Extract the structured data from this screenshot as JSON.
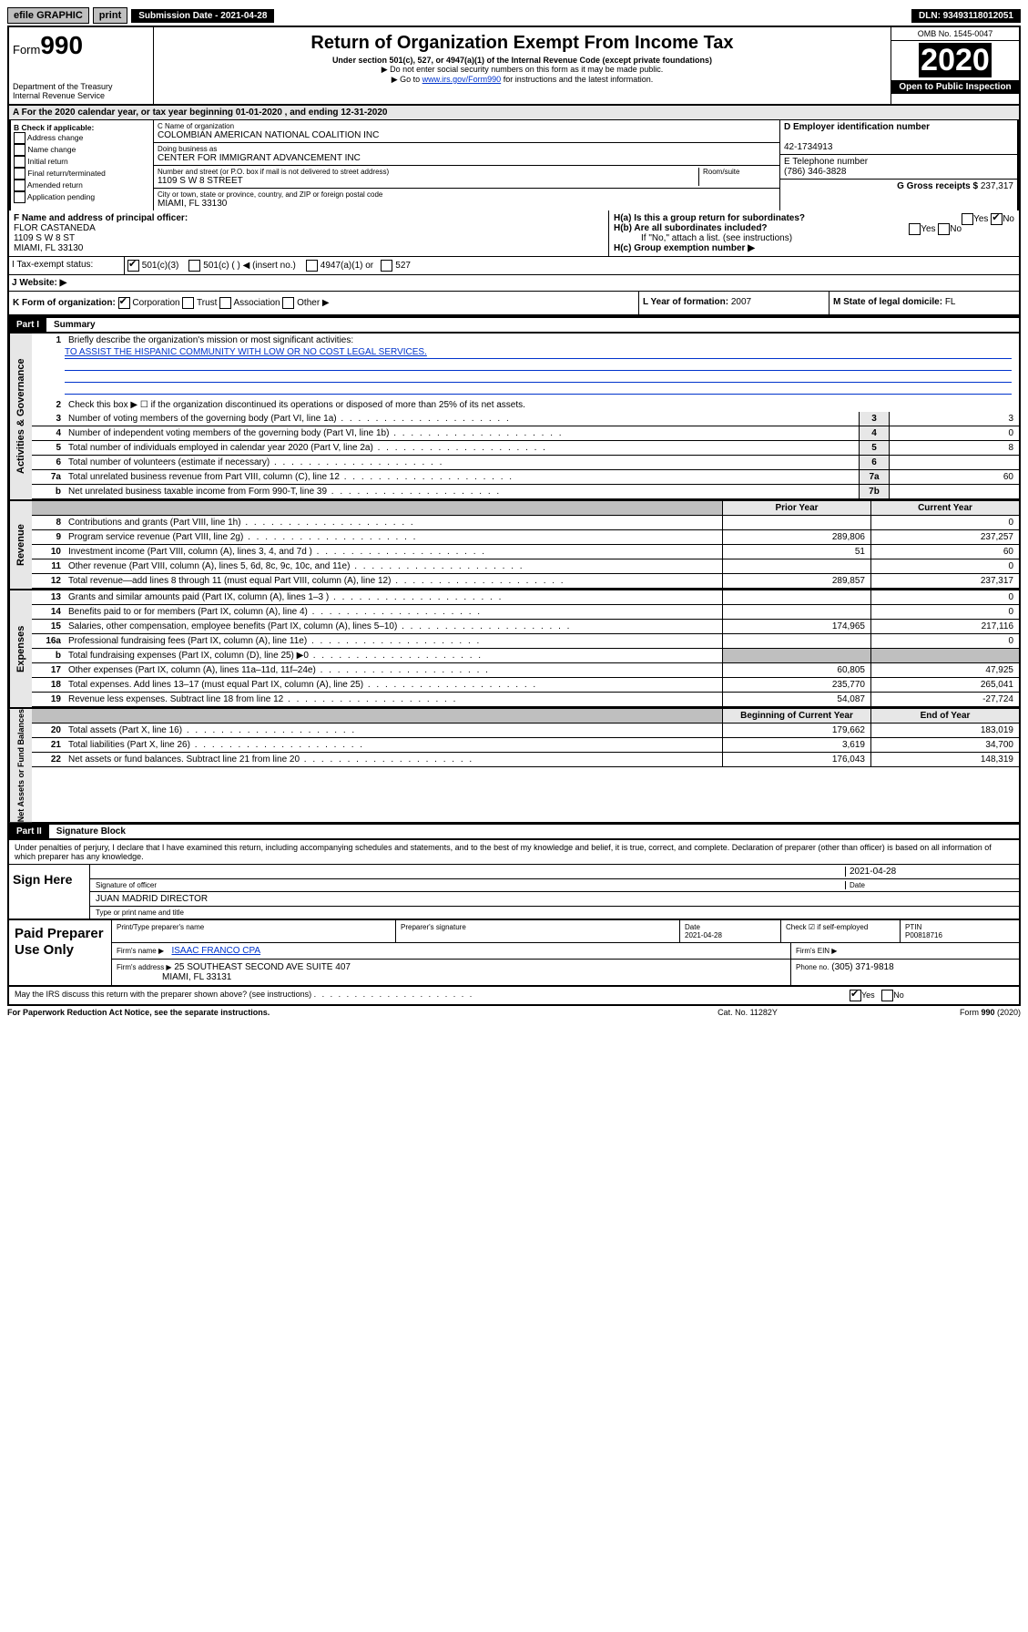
{
  "topbar": {
    "efile": "efile GRAPHIC",
    "print": "print",
    "subdate_label": "Submission Date - 2021-04-28",
    "dln": "DLN: 93493118012051"
  },
  "header": {
    "form_prefix": "Form",
    "form_number": "990",
    "dept": "Department of the Treasury",
    "irs": "Internal Revenue Service",
    "title": "Return of Organization Exempt From Income Tax",
    "subtitle": "Under section 501(c), 527, or 4947(a)(1) of the Internal Revenue Code (except private foundations)",
    "note1": "▶ Do not enter social security numbers on this form as it may be made public.",
    "note2_pre": "▶ Go to ",
    "note2_link": "www.irs.gov/Form990",
    "note2_post": " for instructions and the latest information.",
    "omb": "OMB No. 1545-0047",
    "year": "2020",
    "open": "Open to Public Inspection"
  },
  "lineA": "A For the 2020 calendar year, or tax year beginning 01-01-2020   , and ending 12-31-2020",
  "boxB": {
    "title": "B Check if applicable:",
    "items": [
      "Address change",
      "Name change",
      "Initial return",
      "Final return/terminated",
      "Amended return",
      "Application pending"
    ]
  },
  "boxC": {
    "name_label": "C Name of organization",
    "name": "COLOMBIAN AMERICAN NATIONAL COALITION INC",
    "dba_label": "Doing business as",
    "dba": "CENTER FOR IMMIGRANT ADVANCEMENT INC",
    "street_label": "Number and street (or P.O. box if mail is not delivered to street address)",
    "room_label": "Room/suite",
    "street": "1109 S W 8 STREET",
    "city_label": "City or town, state or province, country, and ZIP or foreign postal code",
    "city": "MIAMI, FL  33130"
  },
  "boxD": {
    "label": "D Employer identification number",
    "value": "42-1734913"
  },
  "boxE": {
    "label": "E Telephone number",
    "value": "(786) 346-3828"
  },
  "boxG": {
    "label": "G Gross receipts $",
    "value": "237,317"
  },
  "boxF": {
    "label": "F Name and address of principal officer:",
    "name": "FLOR CASTANEDA",
    "street": "1109 S W 8 ST",
    "city": "MIAMI, FL  33130"
  },
  "boxH": {
    "a": "H(a)  Is this a group return for subordinates?",
    "a_yes": "Yes",
    "a_no": "No",
    "b": "H(b)  Are all subordinates included?",
    "b_yes": "Yes",
    "b_no": "No",
    "b_note": "If \"No,\" attach a list. (see instructions)",
    "c": "H(c)  Group exemption number ▶"
  },
  "boxI": {
    "label": "I  Tax-exempt status:",
    "opt1": "501(c)(3)",
    "opt2": "501(c) (   ) ◀ (insert no.)",
    "opt3": "4947(a)(1) or",
    "opt4": "527"
  },
  "boxJ": {
    "label": "J  Website: ▶"
  },
  "boxK": {
    "label": "K Form of organization:",
    "opts": [
      "Corporation",
      "Trust",
      "Association",
      "Other ▶"
    ]
  },
  "boxL": {
    "label": "L Year of formation:",
    "value": "2007"
  },
  "boxM": {
    "label": "M State of legal domicile:",
    "value": "FL"
  },
  "partI": {
    "tag": "Part I",
    "title": "Summary"
  },
  "summary": {
    "line1_label": "Briefly describe the organization's mission or most significant activities:",
    "mission": "TO ASSIST THE HISPANIC COMMUNITY WITH LOW OR NO COST LEGAL SERVICES.",
    "line2": "Check this box ▶ ☐  if the organization discontinued its operations or disposed of more than 25% of its net assets.",
    "rows_single": [
      {
        "n": "3",
        "d": "Number of voting members of the governing body (Part VI, line 1a)",
        "b": "3",
        "v": "3"
      },
      {
        "n": "4",
        "d": "Number of independent voting members of the governing body (Part VI, line 1b)",
        "b": "4",
        "v": "0"
      },
      {
        "n": "5",
        "d": "Total number of individuals employed in calendar year 2020 (Part V, line 2a)",
        "b": "5",
        "v": "8"
      },
      {
        "n": "6",
        "d": "Total number of volunteers (estimate if necessary)",
        "b": "6",
        "v": ""
      },
      {
        "n": "7a",
        "d": "Total unrelated business revenue from Part VIII, column (C), line 12",
        "b": "7a",
        "v": "60"
      },
      {
        "n": "b",
        "d": "Net unrelated business taxable income from Form 990-T, line 39",
        "b": "7b",
        "v": ""
      }
    ],
    "header_prior": "Prior Year",
    "header_curr": "Current Year",
    "revenue": [
      {
        "n": "8",
        "d": "Contributions and grants (Part VIII, line 1h)",
        "p": "",
        "c": "0"
      },
      {
        "n": "9",
        "d": "Program service revenue (Part VIII, line 2g)",
        "p": "289,806",
        "c": "237,257"
      },
      {
        "n": "10",
        "d": "Investment income (Part VIII, column (A), lines 3, 4, and 7d )",
        "p": "51",
        "c": "60"
      },
      {
        "n": "11",
        "d": "Other revenue (Part VIII, column (A), lines 5, 6d, 8c, 9c, 10c, and 11e)",
        "p": "",
        "c": "0"
      },
      {
        "n": "12",
        "d": "Total revenue—add lines 8 through 11 (must equal Part VIII, column (A), line 12)",
        "p": "289,857",
        "c": "237,317"
      }
    ],
    "expenses": [
      {
        "n": "13",
        "d": "Grants and similar amounts paid (Part IX, column (A), lines 1–3 )",
        "p": "",
        "c": "0"
      },
      {
        "n": "14",
        "d": "Benefits paid to or for members (Part IX, column (A), line 4)",
        "p": "",
        "c": "0"
      },
      {
        "n": "15",
        "d": "Salaries, other compensation, employee benefits (Part IX, column (A), lines 5–10)",
        "p": "174,965",
        "c": "217,116"
      },
      {
        "n": "16a",
        "d": "Professional fundraising fees (Part IX, column (A), line 11e)",
        "p": "",
        "c": "0"
      },
      {
        "n": "b",
        "d": "Total fundraising expenses (Part IX, column (D), line 25) ▶0",
        "p": "GREY",
        "c": "GREY"
      },
      {
        "n": "17",
        "d": "Other expenses (Part IX, column (A), lines 11a–11d, 11f–24e)",
        "p": "60,805",
        "c": "47,925"
      },
      {
        "n": "18",
        "d": "Total expenses. Add lines 13–17 (must equal Part IX, column (A), line 25)",
        "p": "235,770",
        "c": "265,041"
      },
      {
        "n": "19",
        "d": "Revenue less expenses. Subtract line 18 from line 12",
        "p": "54,087",
        "c": "-27,724"
      }
    ],
    "header_begin": "Beginning of Current Year",
    "header_end": "End of Year",
    "netassets": [
      {
        "n": "20",
        "d": "Total assets (Part X, line 16)",
        "p": "179,662",
        "c": "183,019"
      },
      {
        "n": "21",
        "d": "Total liabilities (Part X, line 26)",
        "p": "3,619",
        "c": "34,700"
      },
      {
        "n": "22",
        "d": "Net assets or fund balances. Subtract line 21 from line 20",
        "p": "176,043",
        "c": "148,319"
      }
    ],
    "sidebar_gov": "Activities & Governance",
    "sidebar_rev": "Revenue",
    "sidebar_exp": "Expenses",
    "sidebar_net": "Net Assets or Fund Balances"
  },
  "partII": {
    "tag": "Part II",
    "title": "Signature Block"
  },
  "sig": {
    "perjury": "Under penalties of perjury, I declare that I have examined this return, including accompanying schedules and statements, and to the best of my knowledge and belief, it is true, correct, and complete. Declaration of preparer (other than officer) is based on all information of which preparer has any knowledge.",
    "sign_here": "Sign Here",
    "sig_officer": "Signature of officer",
    "date": "2021-04-28",
    "date_lbl": "Date",
    "name": "JUAN MADRID DIRECTOR",
    "name_lbl": "Type or print name and title"
  },
  "paid": {
    "label": "Paid Preparer Use Only",
    "h1": "Print/Type preparer's name",
    "h2": "Preparer's signature",
    "h3": "Date",
    "h3v": "2021-04-28",
    "h4": "Check ☑ if self-employed",
    "h5": "PTIN",
    "h5v": "P00818716",
    "firm_lbl": "Firm's name    ▶",
    "firm": "ISAAC FRANCO CPA",
    "ein_lbl": "Firm's EIN ▶",
    "addr_lbl": "Firm's address ▶",
    "addr": "25 SOUTHEAST SECOND AVE SUITE 407",
    "addr2": "MIAMI, FL  33131",
    "phone_lbl": "Phone no.",
    "phone": "(305) 371-9818"
  },
  "discuss": {
    "q": "May the IRS discuss this return with the preparer shown above? (see instructions)",
    "yes": "Yes",
    "no": "No"
  },
  "footer": {
    "pra": "For Paperwork Reduction Act Notice, see the separate instructions.",
    "cat": "Cat. No. 11282Y",
    "form": "Form 990 (2020)"
  }
}
